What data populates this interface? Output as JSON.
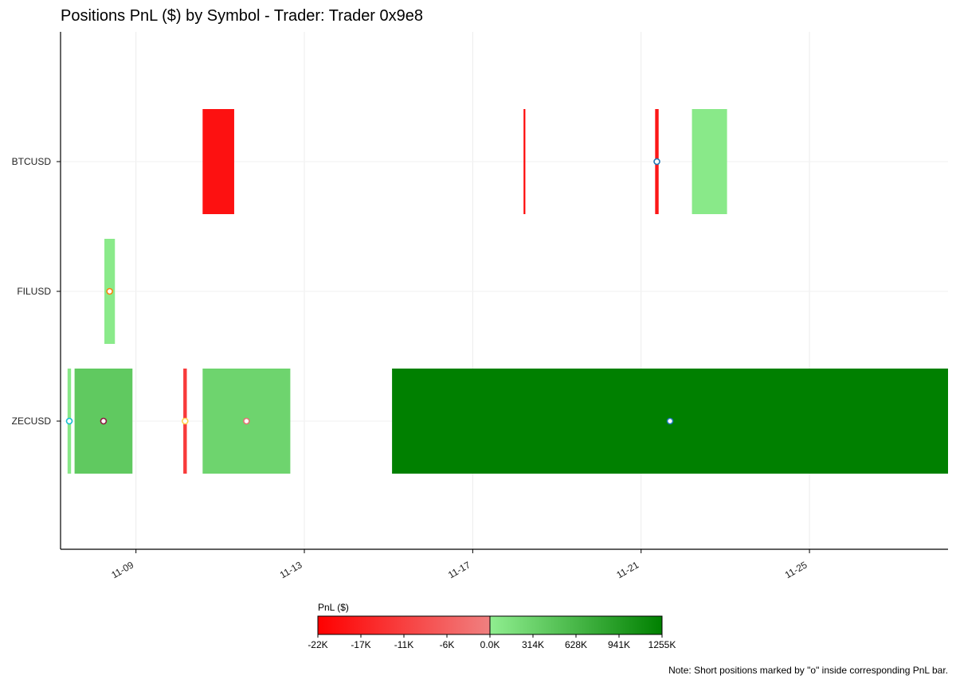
{
  "chart_data": {
    "type": "bar",
    "title": "Positions PnL ($) by Symbol - Trader: Trader 0x9e8",
    "xlabel": "",
    "ylabel": "",
    "x_axis": {
      "type": "date",
      "range": [
        "11-07 05:00",
        "11-28 07:00"
      ],
      "ticks": [
        "11-09",
        "11-13",
        "11-17",
        "11-21",
        "11-25"
      ]
    },
    "categories": [
      "BTCUSD",
      "FILUSD",
      "ZECUSD"
    ],
    "grid": true,
    "positions": [
      {
        "symbol": "BTCUSD",
        "start": "11-10 14:00",
        "end": "11-11 08:00",
        "pnl": -19000,
        "short": false
      },
      {
        "symbol": "BTCUSD",
        "start": "11-18 05:00",
        "end": "11-18 06:00",
        "pnl": -21000,
        "short": false
      },
      {
        "symbol": "BTCUSD",
        "start": "11-21 08:00",
        "end": "11-21 10:00",
        "pnl": -18000,
        "short": true
      },
      {
        "symbol": "BTCUSD",
        "start": "11-22 05:00",
        "end": "11-23 01:00",
        "pnl": 60000,
        "short": false
      },
      {
        "symbol": "FILUSD",
        "start": "11-08 06:00",
        "end": "11-08 12:00",
        "pnl": 50000,
        "short": true
      },
      {
        "symbol": "ZECUSD",
        "start": "11-07 09:00",
        "end": "11-07 11:00",
        "pnl": 70000,
        "short": true
      },
      {
        "symbol": "ZECUSD",
        "start": "11-07 13:00",
        "end": "11-08 22:00",
        "pnl": 420000,
        "short": true
      },
      {
        "symbol": "ZECUSD",
        "start": "11-10 03:00",
        "end": "11-10 05:00",
        "pnl": -12000,
        "short": true
      },
      {
        "symbol": "ZECUSD",
        "start": "11-10 14:00",
        "end": "11-12 16:00",
        "pnl": 300000,
        "short": true
      },
      {
        "symbol": "ZECUSD",
        "start": "11-15 02:00",
        "end": "11-28 07:00",
        "pnl": 1255000,
        "short": true
      }
    ],
    "colorbar": {
      "label": "PnL ($)",
      "ticks": [
        "-22K",
        "-17K",
        "-11K",
        "-6K",
        "0.0K",
        "314K",
        "628K",
        "941K",
        "1255K"
      ],
      "neg_range": [
        -22000,
        0
      ],
      "pos_range": [
        0,
        1255000
      ],
      "colors": {
        "neg_strong": "#ff0000",
        "neg_weak": "#f08080",
        "pos_weak": "#90ee90",
        "pos_strong": "#008000"
      }
    },
    "marker_colors": [
      "#1f77b4",
      "#ff7f0e",
      "#17becf",
      "#8c1d40",
      "#ffd54f",
      "#e57373"
    ],
    "note": "Note: Short positions marked by \"o\" inside corresponding PnL bar."
  }
}
